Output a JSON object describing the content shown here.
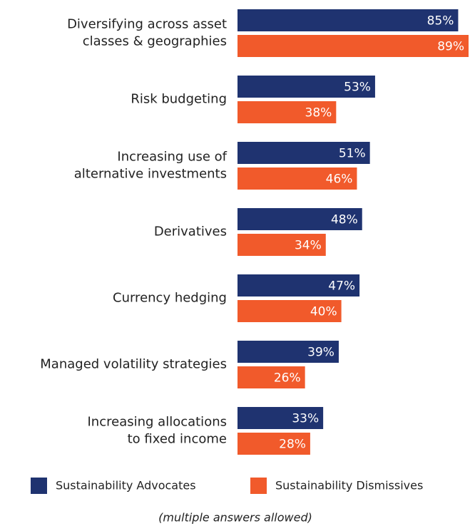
{
  "chart_data": {
    "type": "bar",
    "orientation": "horizontal",
    "categories": [
      [
        "Diversifying across asset",
        "classes & geographies"
      ],
      [
        "Risk budgeting"
      ],
      [
        "Increasing use of",
        "alternative investments"
      ],
      [
        "Derivatives"
      ],
      [
        "Currency hedging"
      ],
      [
        "Managed volatility strategies"
      ],
      [
        "Increasing allocations",
        "to fixed income"
      ]
    ],
    "series": [
      {
        "name": "Sustainability Advocates",
        "color": "#1f3370",
        "values": [
          85,
          53,
          51,
          48,
          47,
          39,
          33
        ],
        "value_labels": [
          "85%",
          "53%",
          "51%",
          "48%",
          "47%",
          "39%",
          "33%"
        ]
      },
      {
        "name": "Sustainability Dismissives",
        "color": "#f15a2b",
        "values": [
          89,
          38,
          46,
          34,
          40,
          26,
          28
        ],
        "value_labels": [
          "89%",
          "38%",
          "46%",
          "34%",
          "40%",
          "26%",
          "28%"
        ]
      }
    ],
    "note": "(multiple answers allowed)"
  }
}
